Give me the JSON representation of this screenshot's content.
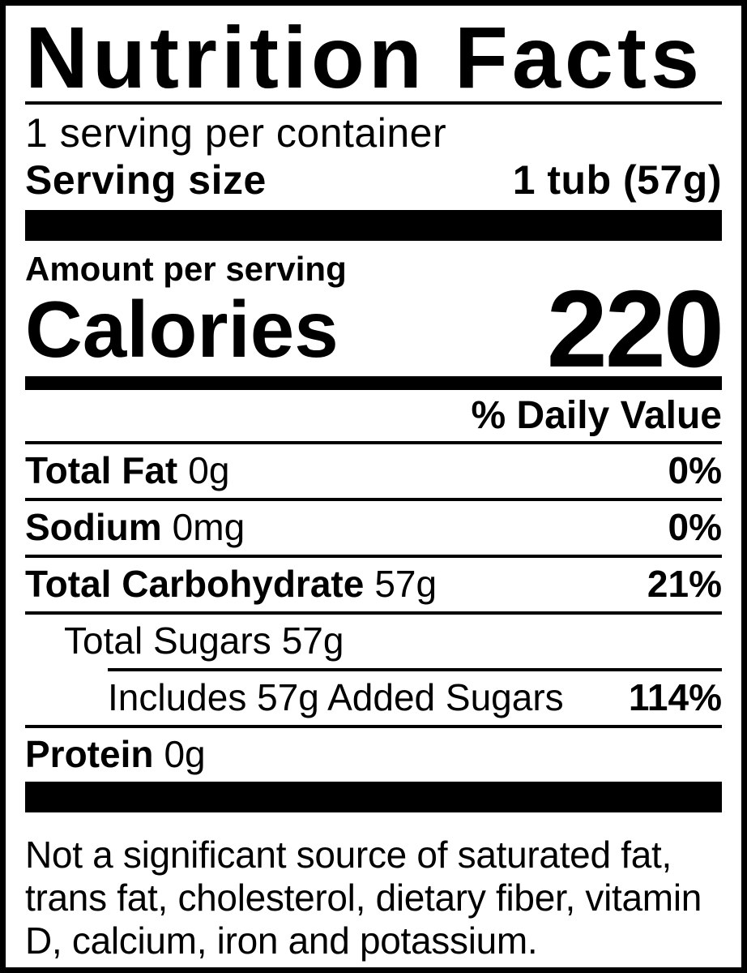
{
  "title": "Nutrition Facts",
  "serving": {
    "per_container": "1 serving per container",
    "size_label": "Serving size",
    "size_value": "1 tub (57g)"
  },
  "calories": {
    "amount_label": "Amount per serving",
    "label": "Calories",
    "value": "220"
  },
  "daily_value_header": "% Daily Value",
  "nutrients": [
    {
      "label": "Total Fat",
      "value": "0g",
      "daily_value": "0%"
    },
    {
      "label": "Sodium",
      "value": "0mg",
      "daily_value": "0%"
    },
    {
      "label": "Total Carbohydrate",
      "value": "57g",
      "daily_value": "21%"
    },
    {
      "label": "Total Sugars",
      "value": "57g",
      "daily_value": ""
    },
    {
      "label": "Includes 57g Added Sugars",
      "value": "",
      "daily_value": "114%"
    },
    {
      "label": "Protein",
      "value": "0g",
      "daily_value": ""
    }
  ],
  "footnote": "Not a significant source of saturated fat, trans fat, cholesterol, dietary fiber, vitamin D, calcium, iron and potassium.",
  "colors": {
    "text": "#000000",
    "background": "#ffffff",
    "border": "#000000"
  }
}
